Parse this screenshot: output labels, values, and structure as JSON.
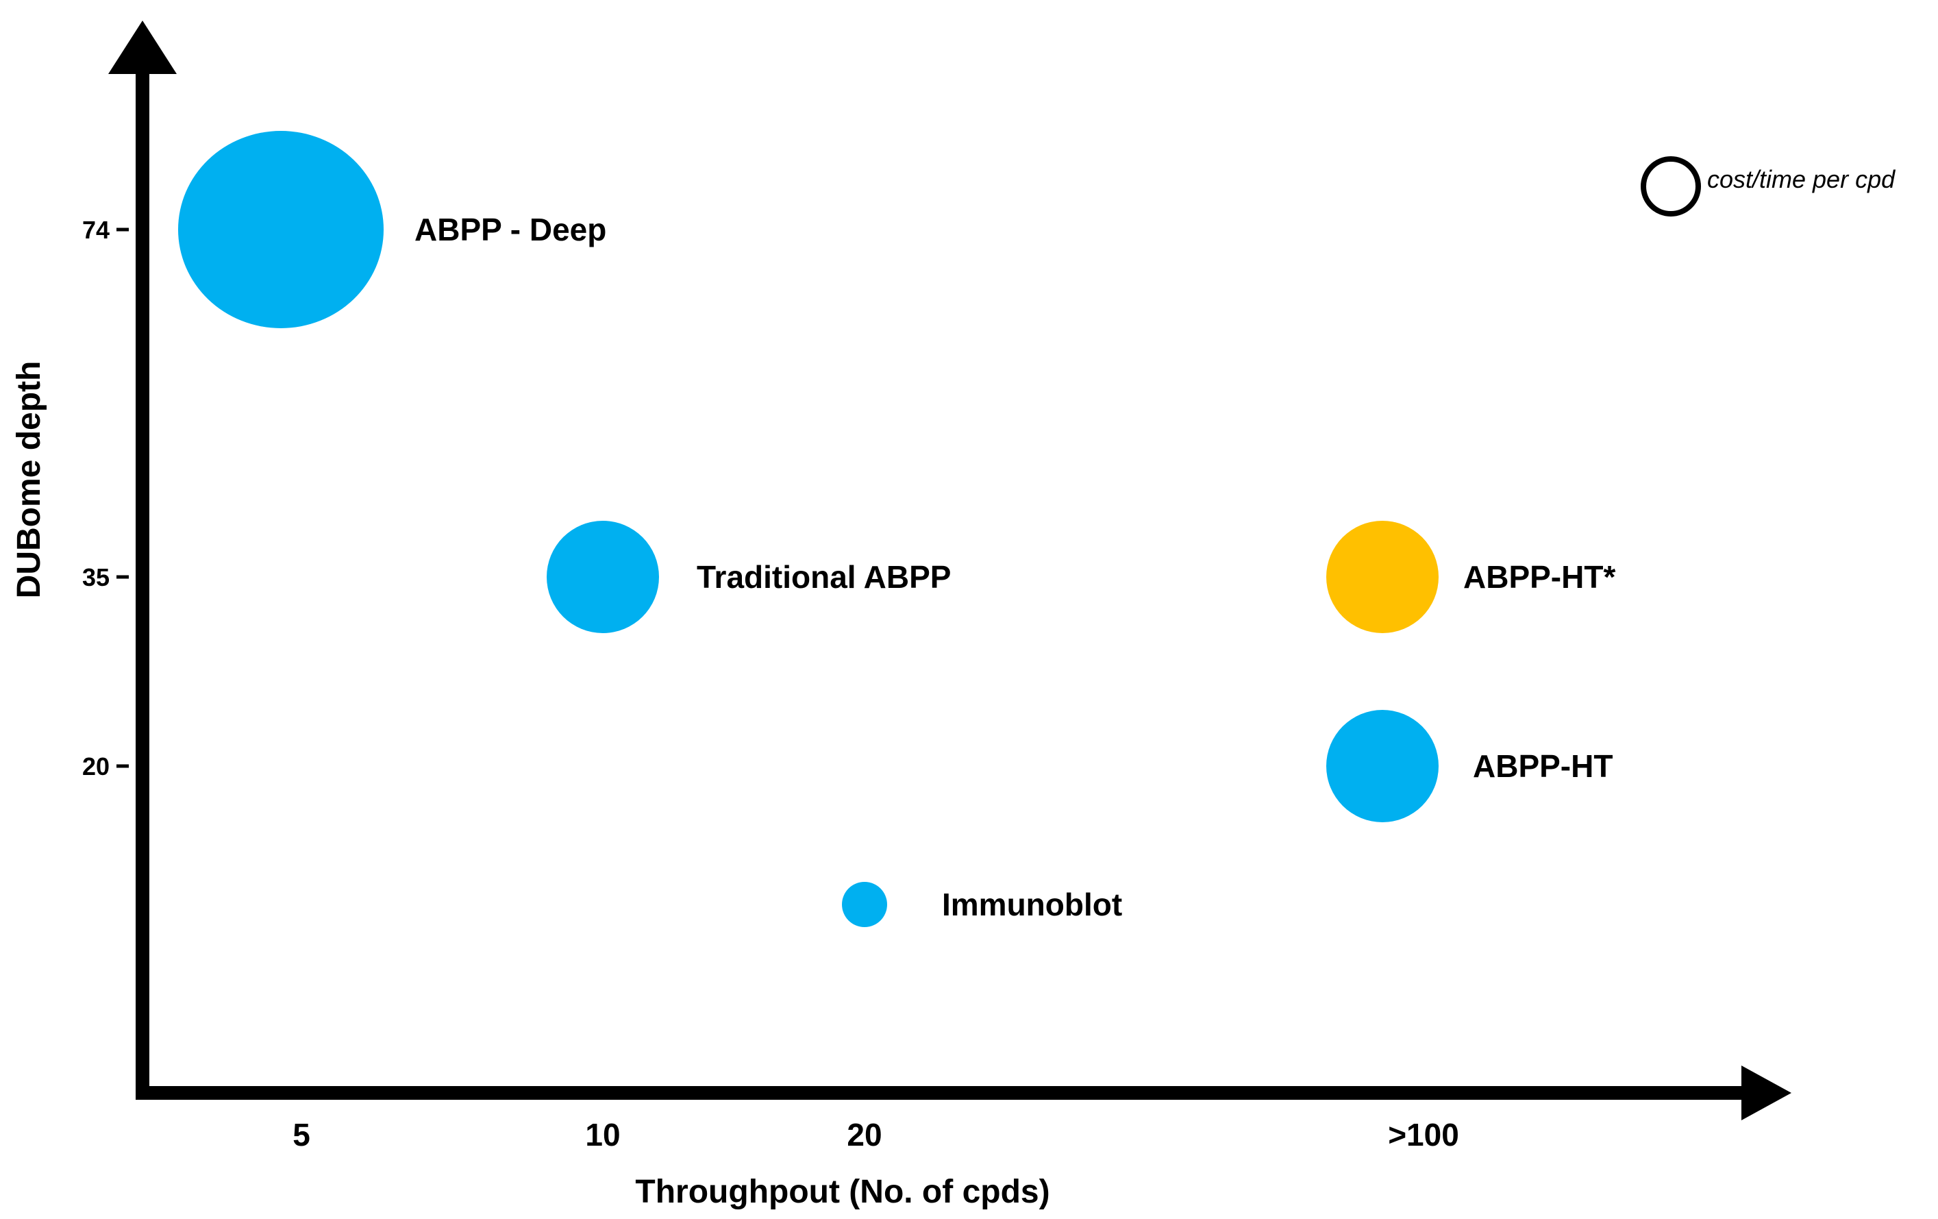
{
  "chart_data": {
    "type": "scatter",
    "title": "",
    "xlabel": "Throughpout  (No. of cpds)",
    "ylabel": "DUBome depth",
    "x_categories": [
      "5",
      "10",
      "20",
      ">100"
    ],
    "y_ticks": [
      {
        "value": 74,
        "label": "74"
      },
      {
        "value": 35,
        "label": "35"
      },
      {
        "value": 20,
        "label": "20"
      }
    ],
    "points": [
      {
        "name": "ABPP - Deep",
        "x": "5",
        "y": 74,
        "size": 5,
        "color": "#00B0F0"
      },
      {
        "name": "Traditional  ABPP",
        "x": "10",
        "y": 35,
        "size": 3,
        "color": "#00B0F0"
      },
      {
        "name": "ABPP-HT*",
        "x": ">100",
        "y": 35,
        "size": 3,
        "color": "#FFC000"
      },
      {
        "name": "ABPP-HT",
        "x": ">100",
        "y": 20,
        "size": 3,
        "color": "#00B0F0"
      },
      {
        "name": "Immunoblot",
        "x": "20",
        "y": 10,
        "size": 1,
        "color": "#00B0F0"
      }
    ],
    "legend": {
      "label": "cost/time per cpd",
      "meaning": "bubble size",
      "placement": "top-right"
    },
    "axis_color": "#000000"
  }
}
